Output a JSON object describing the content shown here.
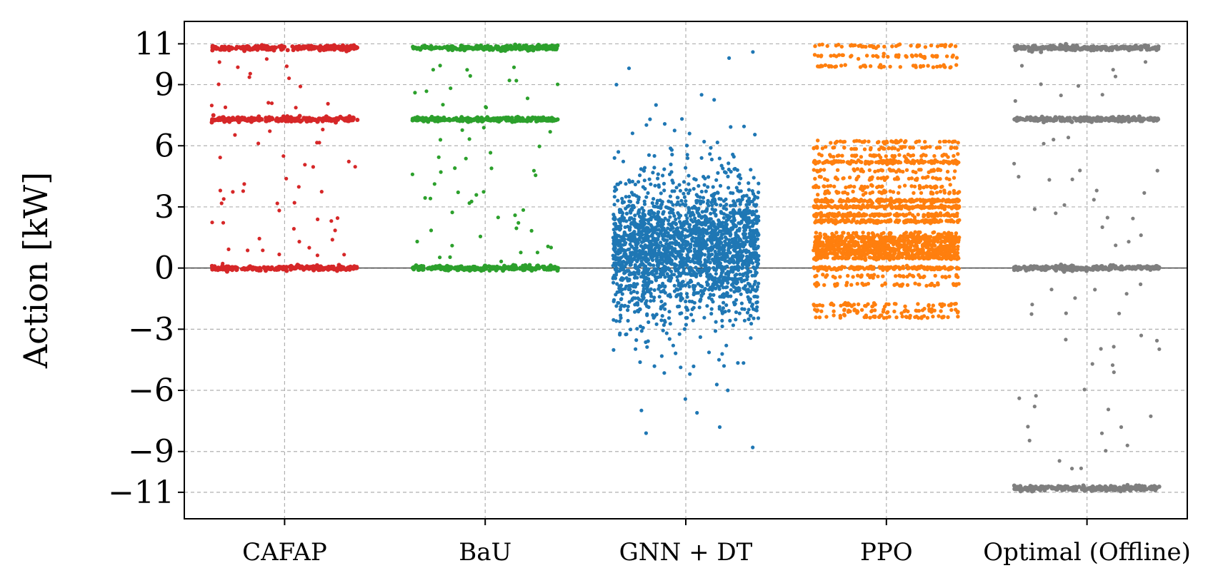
{
  "chart_data": {
    "type": "scatter",
    "subtype": "strip (jittered categorical scatter)",
    "title": "",
    "xlabel": "",
    "ylabel": "Action [kW]",
    "ylim": [
      -12.3,
      12.1
    ],
    "yticks": [
      11,
      9,
      6,
      3,
      0,
      -3,
      -6,
      -9,
      -11
    ],
    "ytick_labels": [
      "11",
      "9",
      "6",
      "3",
      "0",
      "−3",
      "−6",
      "−9",
      "−11"
    ],
    "categories": [
      "CAFAP",
      "BaU",
      "GNN + DT",
      "PPO",
      "Optimal (Offline)"
    ],
    "grid": true,
    "reference_line_y": 0,
    "series": [
      {
        "color": "#d62728",
        "values": [
          {
            "y": 10.8,
            "level": "dense band"
          },
          {
            "y": 7.3,
            "level": "dense band"
          },
          {
            "y": 0.0,
            "level": "dense band"
          },
          {
            "y": 10.1
          },
          {
            "y": 9.6
          },
          {
            "y": 9.1
          },
          {
            "y": 8.0
          },
          {
            "y": 7.8
          },
          {
            "y": 6.5
          },
          {
            "y": 6.0
          },
          {
            "y": 5.4
          },
          {
            "y": 4.8
          },
          {
            "y": 4.1
          },
          {
            "y": 3.9
          },
          {
            "y": 3.5
          },
          {
            "y": 2.9
          },
          {
            "y": 2.5
          },
          {
            "y": 2.1
          },
          {
            "y": 1.6
          },
          {
            "y": 1.1
          },
          {
            "y": 0.7
          },
          {
            "y": 0.4
          }
        ]
      },
      {
        "color": "#2ca02c",
        "values": [
          {
            "y": 10.8,
            "level": "dense band"
          },
          {
            "y": 7.3,
            "level": "dense band"
          },
          {
            "y": 0.0,
            "level": "dense band"
          },
          {
            "y": 10.0
          },
          {
            "y": 9.5
          },
          {
            "y": 9.0
          },
          {
            "y": 8.6
          },
          {
            "y": 8.0
          },
          {
            "y": 6.8
          },
          {
            "y": 6.2
          },
          {
            "y": 5.6
          },
          {
            "y": 5.0
          },
          {
            "y": 4.6
          },
          {
            "y": 4.0
          },
          {
            "y": 3.4
          },
          {
            "y": 3.0
          },
          {
            "y": 2.6
          },
          {
            "y": 2.0
          },
          {
            "y": 1.6
          },
          {
            "y": 1.2
          },
          {
            "y": 0.6
          },
          {
            "y": 0.3
          }
        ]
      },
      {
        "color": "#1f77b4",
        "distribution": {
          "center": 1.0,
          "core_range": [
            -1.2,
            3.2
          ],
          "spread_range": [
            -8.8,
            10.6
          ]
        },
        "values": [
          {
            "y": 10.6
          },
          {
            "y": 10.3
          },
          {
            "y": 9.8
          },
          {
            "y": 9.0
          },
          {
            "y": 8.5
          },
          {
            "y": 8.0
          },
          {
            "y": 7.3
          },
          {
            "y": 6.6
          },
          {
            "y": 5.9
          },
          {
            "y": 5.4
          },
          {
            "y": 4.8
          },
          {
            "y": 4.1
          },
          {
            "y": 3.5
          },
          {
            "y": -2.0
          },
          {
            "y": -2.6
          },
          {
            "y": -3.2
          },
          {
            "y": -3.8
          },
          {
            "y": -4.5
          },
          {
            "y": -5.2
          },
          {
            "y": -6.0
          },
          {
            "y": -7.1
          },
          {
            "y": -7.8
          },
          {
            "y": -8.1
          },
          {
            "y": -8.8
          }
        ]
      },
      {
        "color": "#ff7f0e",
        "levels": [
          10.9,
          10.4,
          9.9,
          6.2,
          5.9,
          5.5,
          5.2,
          4.8,
          4.4,
          4.0,
          3.7,
          3.3,
          3.0,
          2.6,
          2.3,
          1.7,
          1.5,
          1.3,
          1.1,
          0.9,
          0.7,
          0.5,
          0.0,
          -0.4,
          -0.8,
          -1.8,
          -2.1,
          -2.4
        ],
        "dense_levels": [
          5.2,
          3.3,
          3.0,
          2.6,
          2.3,
          1.5,
          1.3,
          1.1,
          0.9,
          0.7,
          0.5,
          0.0
        ]
      },
      {
        "color": "#7f7f7f",
        "values": [
          {
            "y": 10.8,
            "level": "dense band"
          },
          {
            "y": 7.3,
            "level": "dense band"
          },
          {
            "y": 0.0,
            "level": "dense band"
          },
          {
            "y": -10.8,
            "level": "dense band"
          },
          {
            "y": 10.0
          },
          {
            "y": 9.2
          },
          {
            "y": 8.4
          },
          {
            "y": 6.2
          },
          {
            "y": 5.0
          },
          {
            "y": 4.2
          },
          {
            "y": 3.6
          },
          {
            "y": 2.9
          },
          {
            "y": 2.2
          },
          {
            "y": 1.4
          },
          {
            "y": -0.8
          },
          {
            "y": -1.5
          },
          {
            "y": -2.4
          },
          {
            "y": -3.3
          },
          {
            "y": -4.1
          },
          {
            "y": -5.0
          },
          {
            "y": -6.2
          },
          {
            "y": -7.0
          },
          {
            "y": -7.9
          },
          {
            "y": -8.7
          },
          {
            "y": -9.6
          }
        ]
      }
    ]
  }
}
